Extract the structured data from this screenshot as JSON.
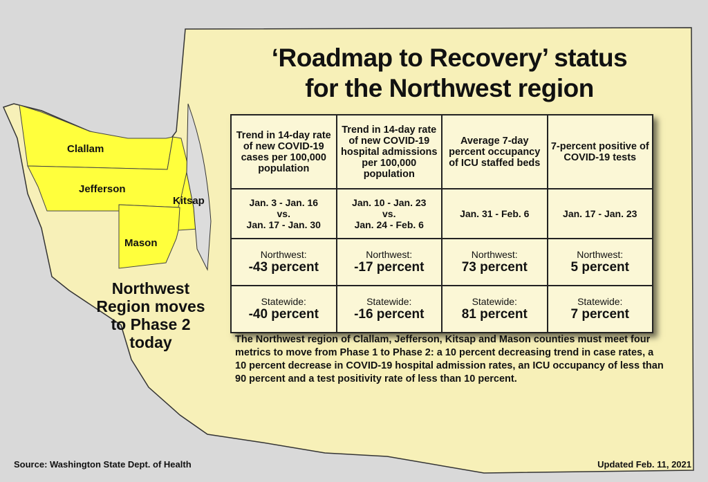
{
  "title": {
    "line1": "‘Roadmap to Recovery’ status",
    "line2": "for the Northwest region"
  },
  "colors": {
    "background": "#d9d9d9",
    "state": "#f7f0b8",
    "highlight_counties": "#ffff3c",
    "table": "#fbf7d6"
  },
  "counties": [
    "Clallam",
    "Jefferson",
    "Kitsap",
    "Mason"
  ],
  "phase_text": {
    "line1": "Northwest",
    "line2": "Region moves",
    "line3": "to Phase 2",
    "line4": "today"
  },
  "table": {
    "headers": [
      "Trend in 14-day rate of new COVID-19 cases per 100,000 population",
      "Trend in 14-day rate of new COVID-19 hospital admissions per 100,000 population",
      "Average 7-day percent occupancy of ICU staffed beds",
      "7-percent positive of COVID-19 tests"
    ],
    "dates": [
      {
        "a": "Jan. 3 - Jan. 16",
        "vs": "vs.",
        "b": "Jan. 17 - Jan. 30"
      },
      {
        "a": "Jan. 10 - Jan. 23",
        "vs": "vs.",
        "b": "Jan. 24 - Feb. 6"
      },
      {
        "a": "Jan. 31 - Feb. 6"
      },
      {
        "a": "Jan. 17 - Jan. 23"
      }
    ],
    "northwest": {
      "label": "Northwest:",
      "values": [
        "-43 percent",
        "-17 percent",
        "73 percent",
        "5 percent"
      ]
    },
    "statewide": {
      "label": "Statewide:",
      "values": [
        "-40 percent",
        "-16 percent",
        "81 percent",
        "7 percent"
      ]
    }
  },
  "description": "The Northwest region of Clallam, Jefferson, Kitsap and Mason counties must meet four metrics to move from Phase 1 to Phase 2:  a 10 percent decreasing trend in case rates, a 10 percent decrease in COVID-19 hospital admission rates, an ICU occupancy of less than 90 percent and a test positivity rate of less than 10 percent.",
  "source": "Source: Washington State Dept. of Health",
  "updated": "Updated Feb. 11, 2021"
}
